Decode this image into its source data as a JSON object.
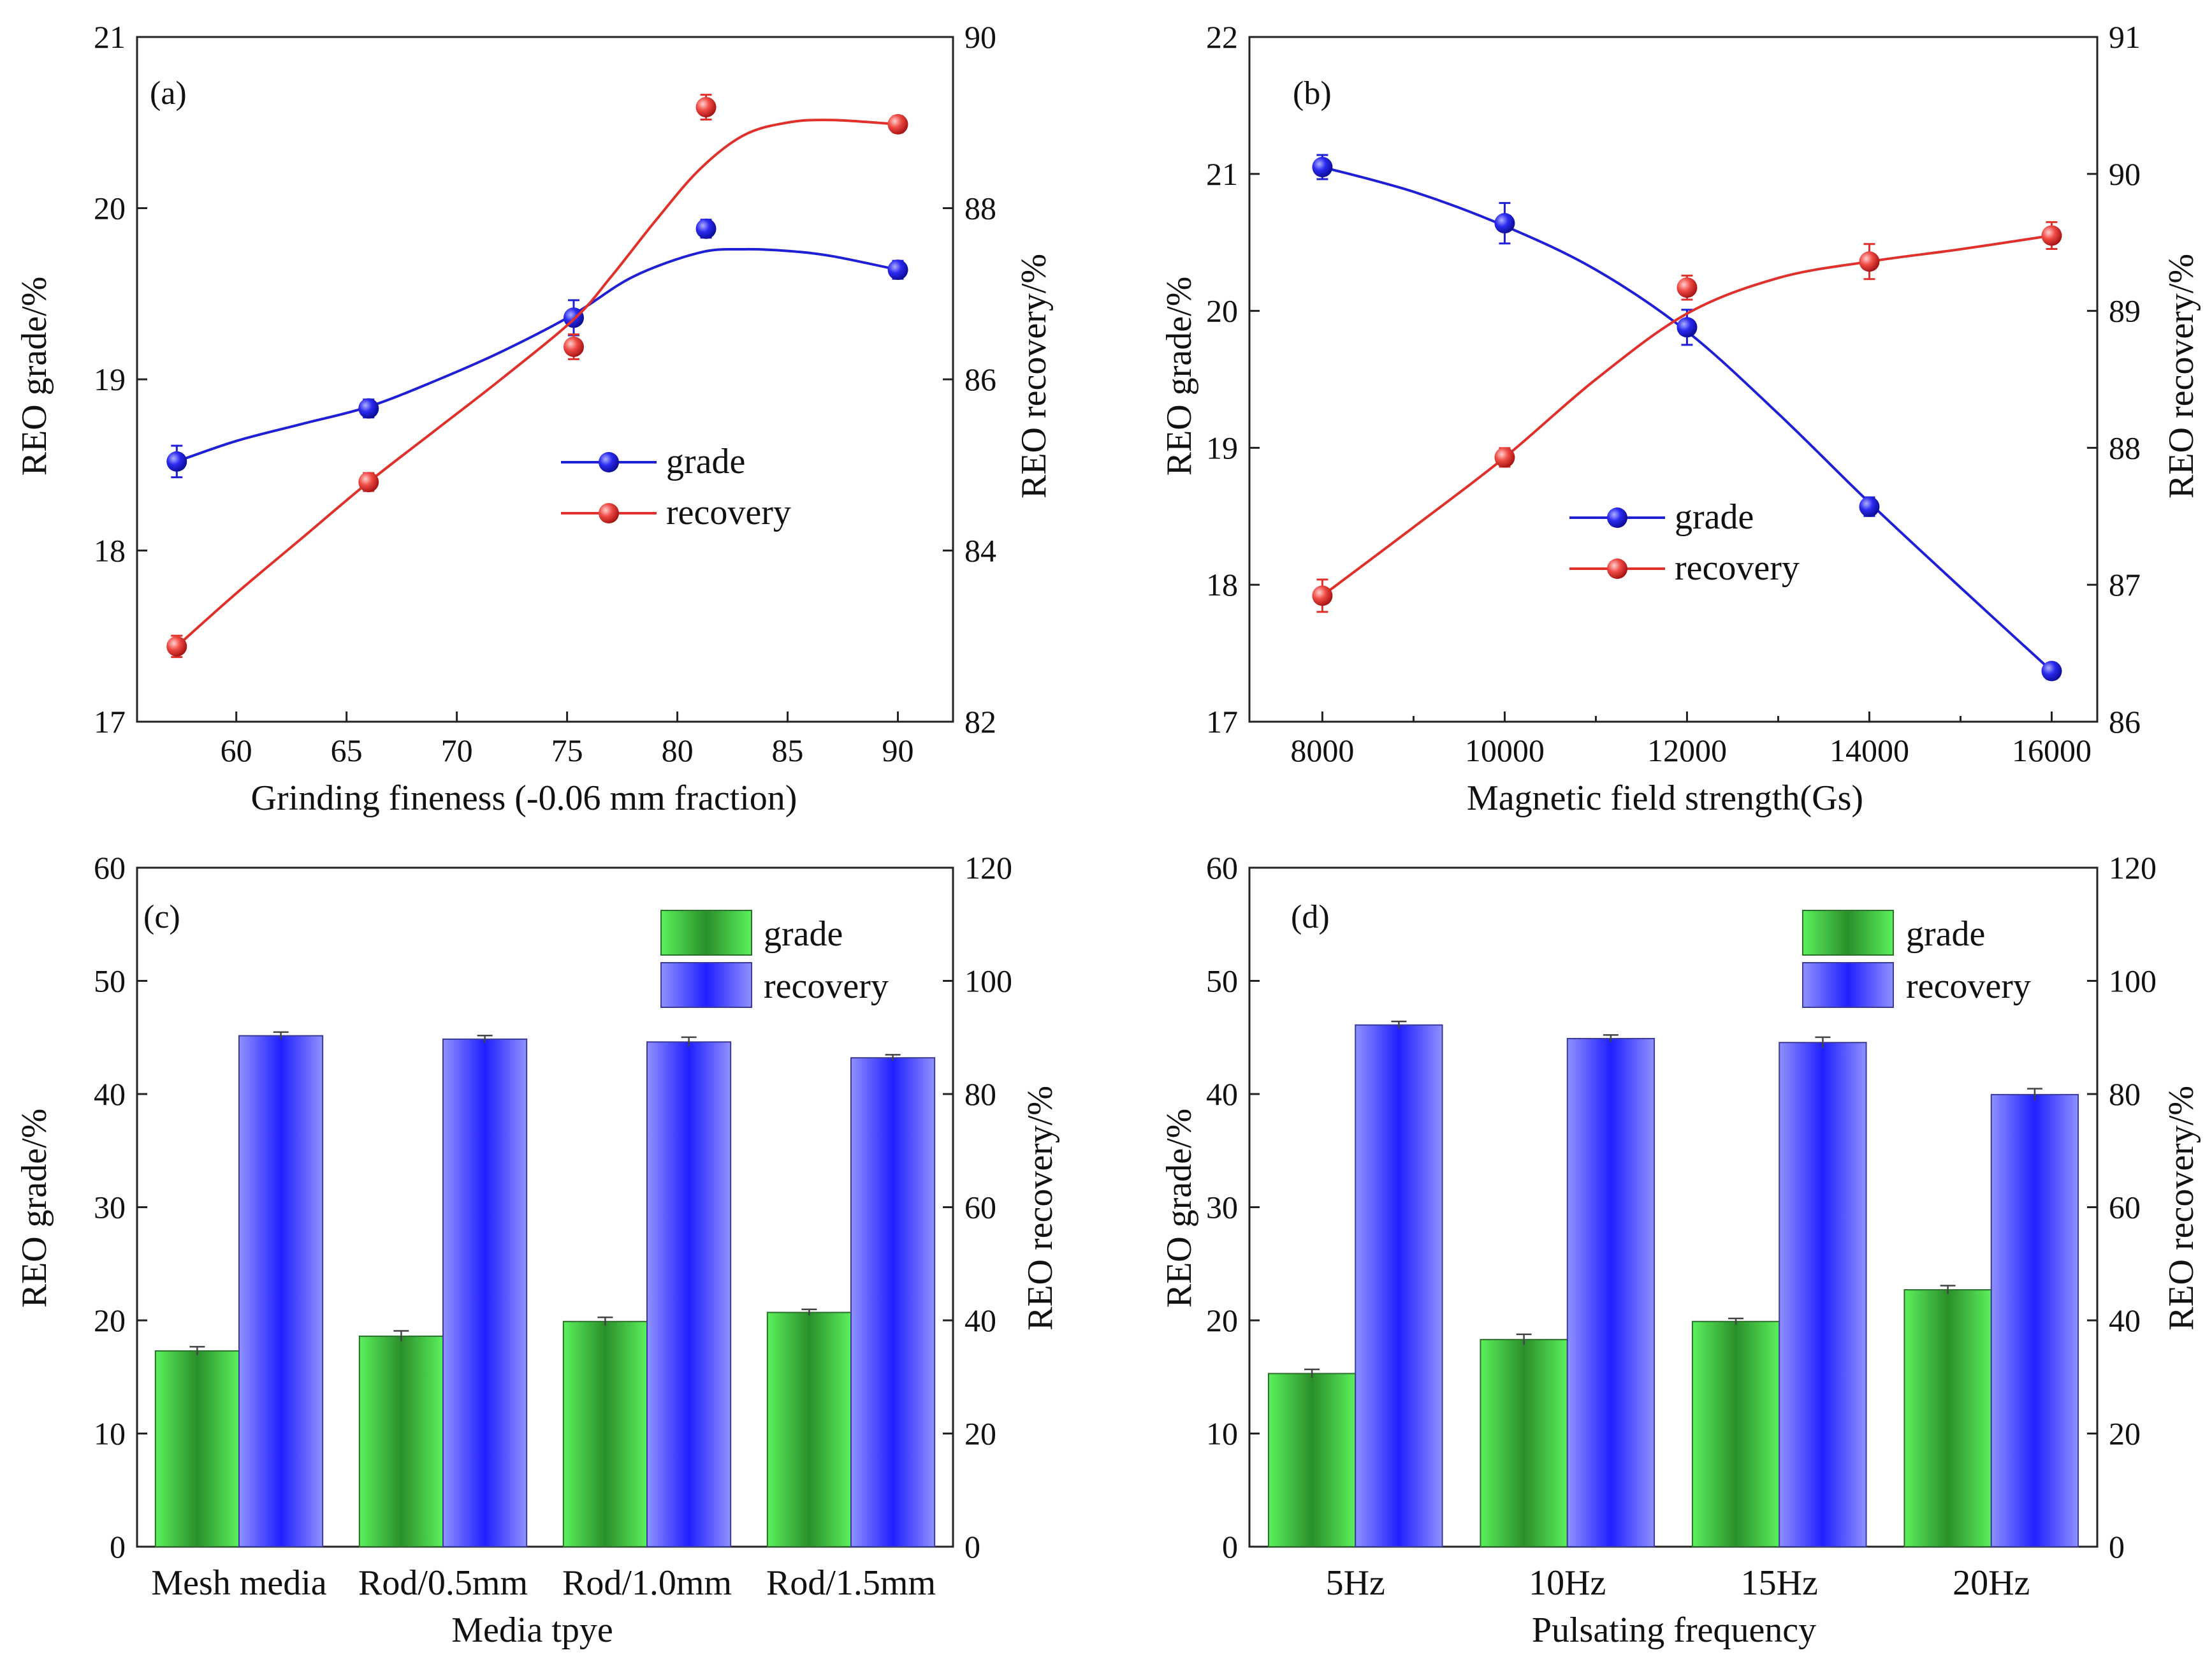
{
  "colors": {
    "grade_line": "#1f1fd6",
    "recovery_line": "#e0302b",
    "grade_bar_edge": "#22b522",
    "grade_bar_mid": "#2e8b2e",
    "grade_bar_light": "#55f055",
    "recovery_bar_mid": "#2222ff",
    "recovery_bar_light": "#8f8fff"
  },
  "chart_data": [
    {
      "panel": "(a)",
      "type": "line",
      "xlabel": "Grinding fineness (-0.06 mm fraction)",
      "ylabel_left": "REO  grade/%",
      "ylabel_right": "REO  recovery/%",
      "xlim": [
        55.5,
        92.5
      ],
      "xticks": [
        60,
        65,
        70,
        75,
        80,
        85,
        90
      ],
      "ylim_left": [
        17,
        21
      ],
      "yticks_left": [
        17,
        18,
        19,
        20,
        21
      ],
      "ylim_right": [
        82,
        90
      ],
      "yticks_right": [
        82,
        84,
        86,
        88,
        90
      ],
      "legend_position": "center-right",
      "series": [
        {
          "name": "grade",
          "axis": "left",
          "x": [
            57.3,
            66.0,
            75.3,
            81.3,
            90.0
          ],
          "values": [
            18.52,
            18.83,
            19.36,
            19.88,
            19.64
          ],
          "errors": [
            0.07,
            0.03,
            0.08,
            0.03,
            0.03
          ],
          "fit": {
            "x": [
              57.3,
              60,
              63,
              66,
              69,
              72,
              75.3,
              78,
              81,
              83,
              85,
              87,
              90
            ],
            "y": [
              18.52,
              18.64,
              18.74,
              18.84,
              18.99,
              19.16,
              19.38,
              19.6,
              19.74,
              19.76,
              19.75,
              19.72,
              19.64
            ]
          }
        },
        {
          "name": "recovery",
          "axis": "right",
          "x": [
            57.3,
            66.0,
            75.3,
            81.3,
            90.0
          ],
          "values": [
            82.88,
            84.8,
            86.38,
            89.18,
            88.98
          ],
          "errors": [
            0.08,
            0.06,
            0.1,
            0.1,
            0.05
          ],
          "fit": {
            "x": [
              57.3,
              60,
              63,
              66,
              69,
              72,
              75.3,
              77,
              79,
              81,
              83,
              85,
              87,
              90
            ],
            "y": [
              82.88,
              83.5,
              84.15,
              84.8,
              85.4,
              86.0,
              86.7,
              87.2,
              87.85,
              88.45,
              88.85,
              89.0,
              89.03,
              88.98
            ]
          }
        }
      ]
    },
    {
      "panel": "(b)",
      "type": "line",
      "xlabel": "Magnetic field strength(Gs)",
      "ylabel_left": "REO  grade/%",
      "ylabel_right": "REO  recovery/%",
      "xlim": [
        7200,
        16500
      ],
      "xticks": [
        8000,
        10000,
        12000,
        14000,
        16000
      ],
      "ylim_left": [
        17,
        22
      ],
      "yticks_left": [
        17,
        18,
        19,
        20,
        21,
        22
      ],
      "ylim_right": [
        86,
        91
      ],
      "yticks_right": [
        86,
        87,
        88,
        89,
        90,
        91
      ],
      "legend_position": "center",
      "series": [
        {
          "name": "grade",
          "axis": "left",
          "x": [
            8000,
            10000,
            12000,
            14000,
            16000
          ],
          "values": [
            21.05,
            20.64,
            19.88,
            18.57,
            17.37
          ],
          "errors": [
            0.06,
            0.12,
            0.1,
            0.04,
            0.03
          ],
          "fit": {
            "x": [
              8000,
              9000,
              10000,
              11000,
              12000,
              13000,
              14000,
              15000,
              16000
            ],
            "y": [
              21.05,
              20.87,
              20.62,
              20.3,
              19.85,
              19.25,
              18.6,
              17.98,
              17.37
            ]
          }
        },
        {
          "name": "recovery",
          "axis": "right",
          "x": [
            8000,
            10000,
            12000,
            14000,
            16000
          ],
          "values": [
            86.92,
            87.93,
            89.17,
            89.36,
            89.55
          ],
          "errors": [
            0.09,
            0.04,
            0.06,
            0.1,
            0.07
          ],
          "fit": {
            "x": [
              8000,
              9000,
              10000,
              11000,
              12000,
              13000,
              14000,
              15000,
              16000
            ],
            "y": [
              86.92,
              87.42,
              87.93,
              88.5,
              88.98,
              89.24,
              89.36,
              89.45,
              89.55
            ]
          }
        }
      ]
    },
    {
      "panel": "(c)",
      "type": "bar",
      "xlabel": "Media tpye",
      "ylabel_left": "REO  grade/%",
      "ylabel_right": "REO  recovery/%",
      "categories": [
        "Mesh media",
        "Rod/0.5mm",
        "Rod/1.0mm",
        "Rod/1.5mm"
      ],
      "ylim_left": [
        0,
        60
      ],
      "yticks_left": [
        0,
        10,
        20,
        30,
        40,
        50,
        60
      ],
      "ylim_right": [
        0,
        120
      ],
      "yticks_right": [
        0,
        20,
        40,
        60,
        80,
        100,
        120
      ],
      "legend_position": "top-right",
      "series": [
        {
          "name": "grade",
          "axis": "left",
          "values": [
            17.3,
            18.6,
            19.9,
            20.7
          ],
          "errors": [
            0.2,
            0.3,
            0.2,
            0.1
          ]
        },
        {
          "name": "recovery",
          "axis": "right",
          "values": [
            90.3,
            89.7,
            89.2,
            86.4
          ],
          "errors": [
            0.3,
            0.3,
            0.5,
            0.2
          ]
        }
      ]
    },
    {
      "panel": "(d)",
      "type": "bar",
      "xlabel": "Pulsating frequency",
      "ylabel_left": "REO  grade/%",
      "ylabel_right": "REO  recovery/%",
      "categories": [
        "5Hz",
        "10Hz",
        "15Hz",
        "20Hz"
      ],
      "ylim_left": [
        0,
        60
      ],
      "yticks_left": [
        0,
        10,
        20,
        30,
        40,
        50,
        60
      ],
      "ylim_right": [
        0,
        120
      ],
      "yticks_right": [
        0,
        20,
        40,
        60,
        80,
        100,
        120
      ],
      "legend_position": "top-right",
      "series": [
        {
          "name": "grade",
          "axis": "left",
          "values": [
            15.3,
            18.3,
            19.9,
            22.7
          ],
          "errors": [
            0.2,
            0.3,
            0.1,
            0.2
          ]
        },
        {
          "name": "recovery",
          "axis": "right",
          "values": [
            92.2,
            89.8,
            89.1,
            79.9
          ],
          "errors": [
            0.3,
            0.3,
            0.6,
            0.7
          ]
        }
      ]
    }
  ]
}
